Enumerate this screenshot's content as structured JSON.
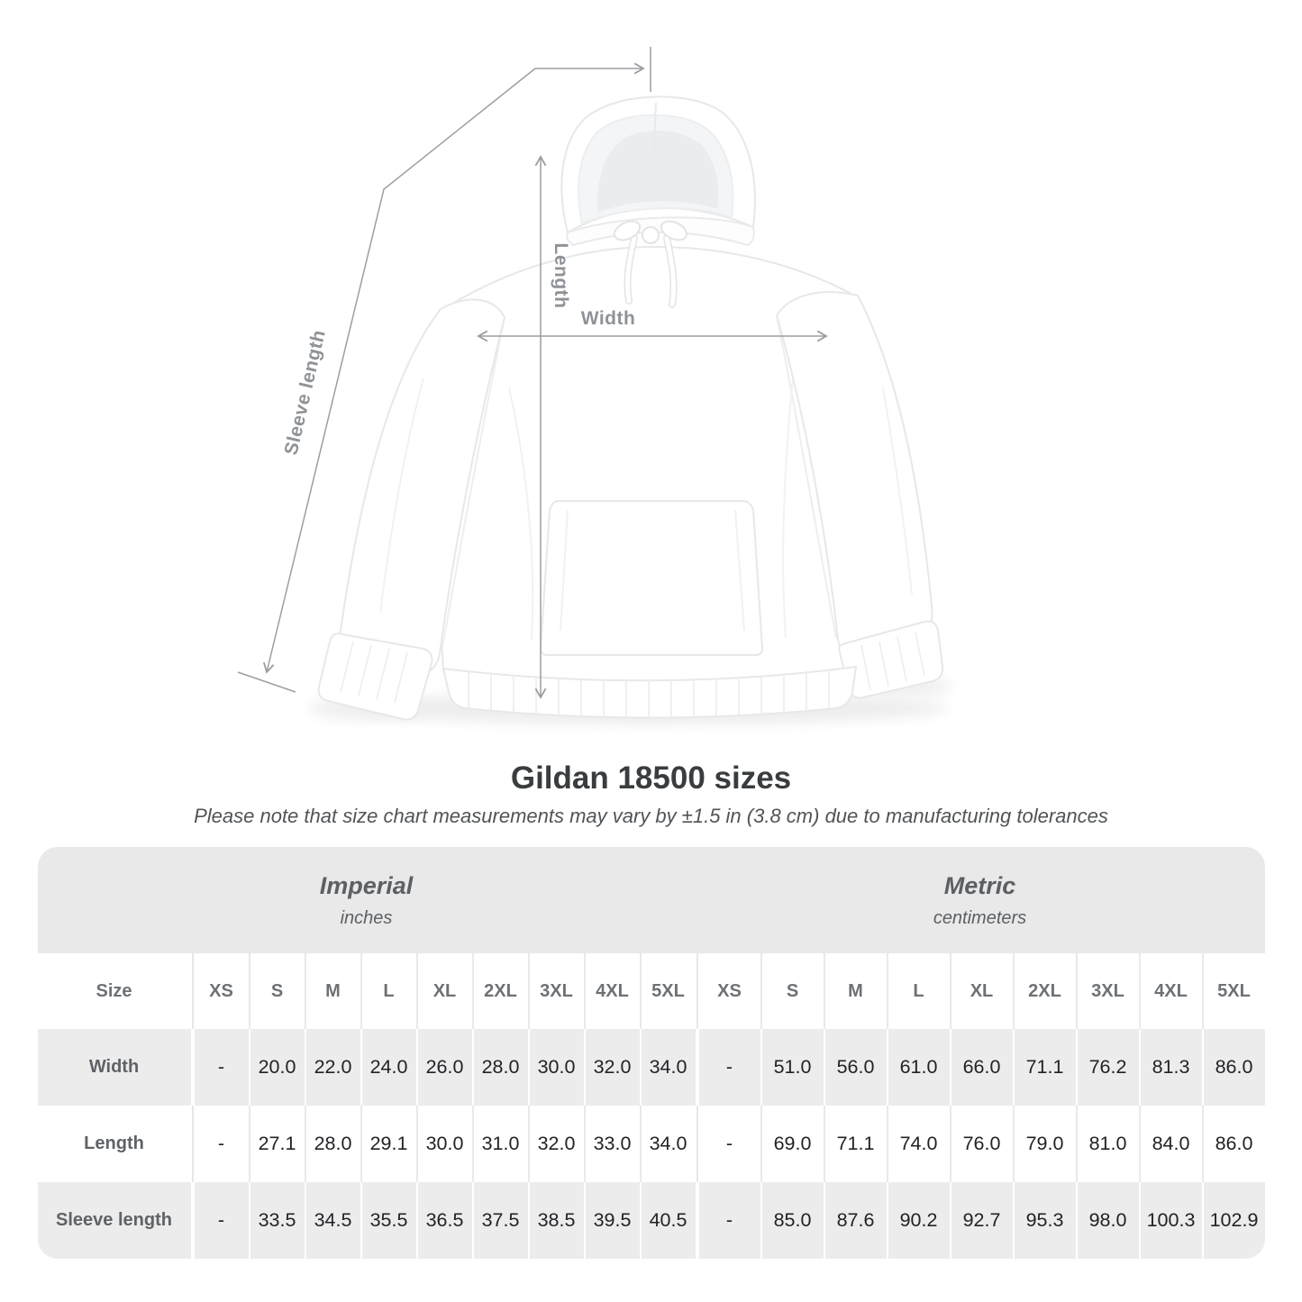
{
  "diagram": {
    "labels": {
      "length": "Length",
      "width": "Width",
      "sleeve": "Sleeve length"
    }
  },
  "heading": {
    "title": "Gildan 18500 sizes",
    "note": "Please note that size chart measurements may vary by ±1.5 in (3.8 cm) due to manufacturing tolerances"
  },
  "table": {
    "size_label": "Size",
    "unit_groups": [
      {
        "name": "Imperial",
        "unit": "inches"
      },
      {
        "name": "Metric",
        "unit": "centimeters"
      }
    ],
    "sizes": [
      "XS",
      "S",
      "M",
      "L",
      "XL",
      "2XL",
      "3XL",
      "4XL",
      "5XL"
    ],
    "rows": [
      {
        "label": "Width",
        "imperial": [
          "-",
          "20.0",
          "22.0",
          "24.0",
          "26.0",
          "28.0",
          "30.0",
          "32.0",
          "34.0"
        ],
        "metric": [
          "-",
          "51.0",
          "56.0",
          "61.0",
          "66.0",
          "71.1",
          "76.2",
          "81.3",
          "86.0"
        ]
      },
      {
        "label": "Length",
        "imperial": [
          "-",
          "27.1",
          "28.0",
          "29.1",
          "30.0",
          "31.0",
          "32.0",
          "33.0",
          "34.0"
        ],
        "metric": [
          "-",
          "69.0",
          "71.1",
          "74.0",
          "76.0",
          "79.0",
          "81.0",
          "84.0",
          "86.0"
        ]
      },
      {
        "label": "Sleeve length",
        "imperial": [
          "-",
          "33.5",
          "34.5",
          "35.5",
          "36.5",
          "37.5",
          "38.5",
          "39.5",
          "40.5"
        ],
        "metric": [
          "-",
          "85.0",
          "87.6",
          "90.2",
          "92.7",
          "95.3",
          "98.0",
          "100.3",
          "102.9"
        ]
      }
    ],
    "colors": {
      "band": "#e9e9e9",
      "row_shade": "#ececec",
      "value_text": "#212326",
      "header_text": "#6d7175",
      "measure_line": "#9b9ea1"
    }
  }
}
